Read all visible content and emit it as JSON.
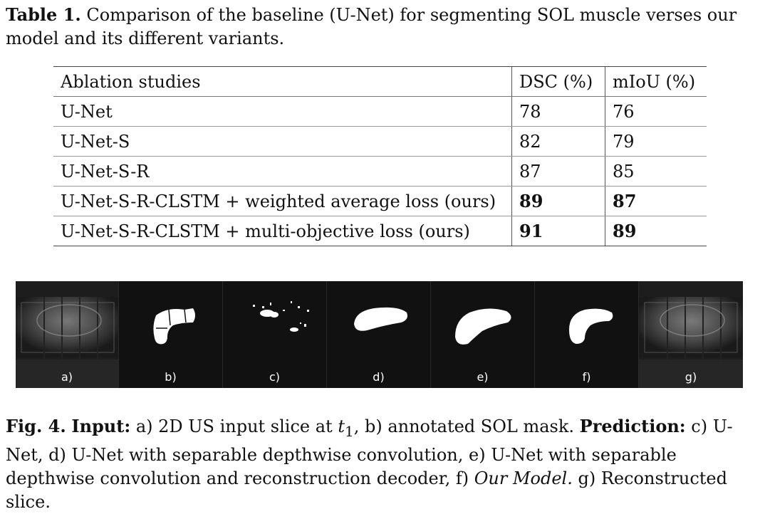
{
  "table_caption": {
    "label": "Table 1.",
    "text": " Comparison of the baseline (U-Net) for segmenting SOL muscle verses our model and its different variants."
  },
  "table": {
    "headers": [
      "Ablation studies",
      "DSC (%)",
      "mIoU (%)"
    ],
    "rows": [
      {
        "name": "U-Net",
        "dsc": "78",
        "miou": "76"
      },
      {
        "name": "U-Net-S",
        "dsc": "82",
        "miou": "79"
      },
      {
        "name": "U-Net-S-R",
        "dsc": "87",
        "miou": "85"
      },
      {
        "name": "U-Net-S-R-CLSTM + weighted average loss (ours)",
        "dsc": "89",
        "miou": "87"
      },
      {
        "name": "U-Net-S-R-CLSTM + multi-objective loss (ours)",
        "dsc": "91",
        "miou": "89"
      }
    ]
  },
  "figure": {
    "panels": [
      "a)",
      "b)",
      "c)",
      "d)",
      "e)",
      "f)",
      "g)"
    ]
  },
  "figure_caption": {
    "fig_label": "Fig. 4.",
    "input_label": "Input:",
    "input_text_1": " a) 2D US input slice at ",
    "t_symbol": "t",
    "t_sub": "1",
    "input_text_2": ", b) annotated SOL mask. ",
    "prediction_label": "Prediction:",
    "prediction_text_1": " c) U-Net, d) U-Net with separable depthwise convolution, e) U-Net with separable depthwise convolution and reconstruction decoder, f) ",
    "our_model": "Our Model.",
    "prediction_text_2": " g) Reconstructed slice."
  }
}
